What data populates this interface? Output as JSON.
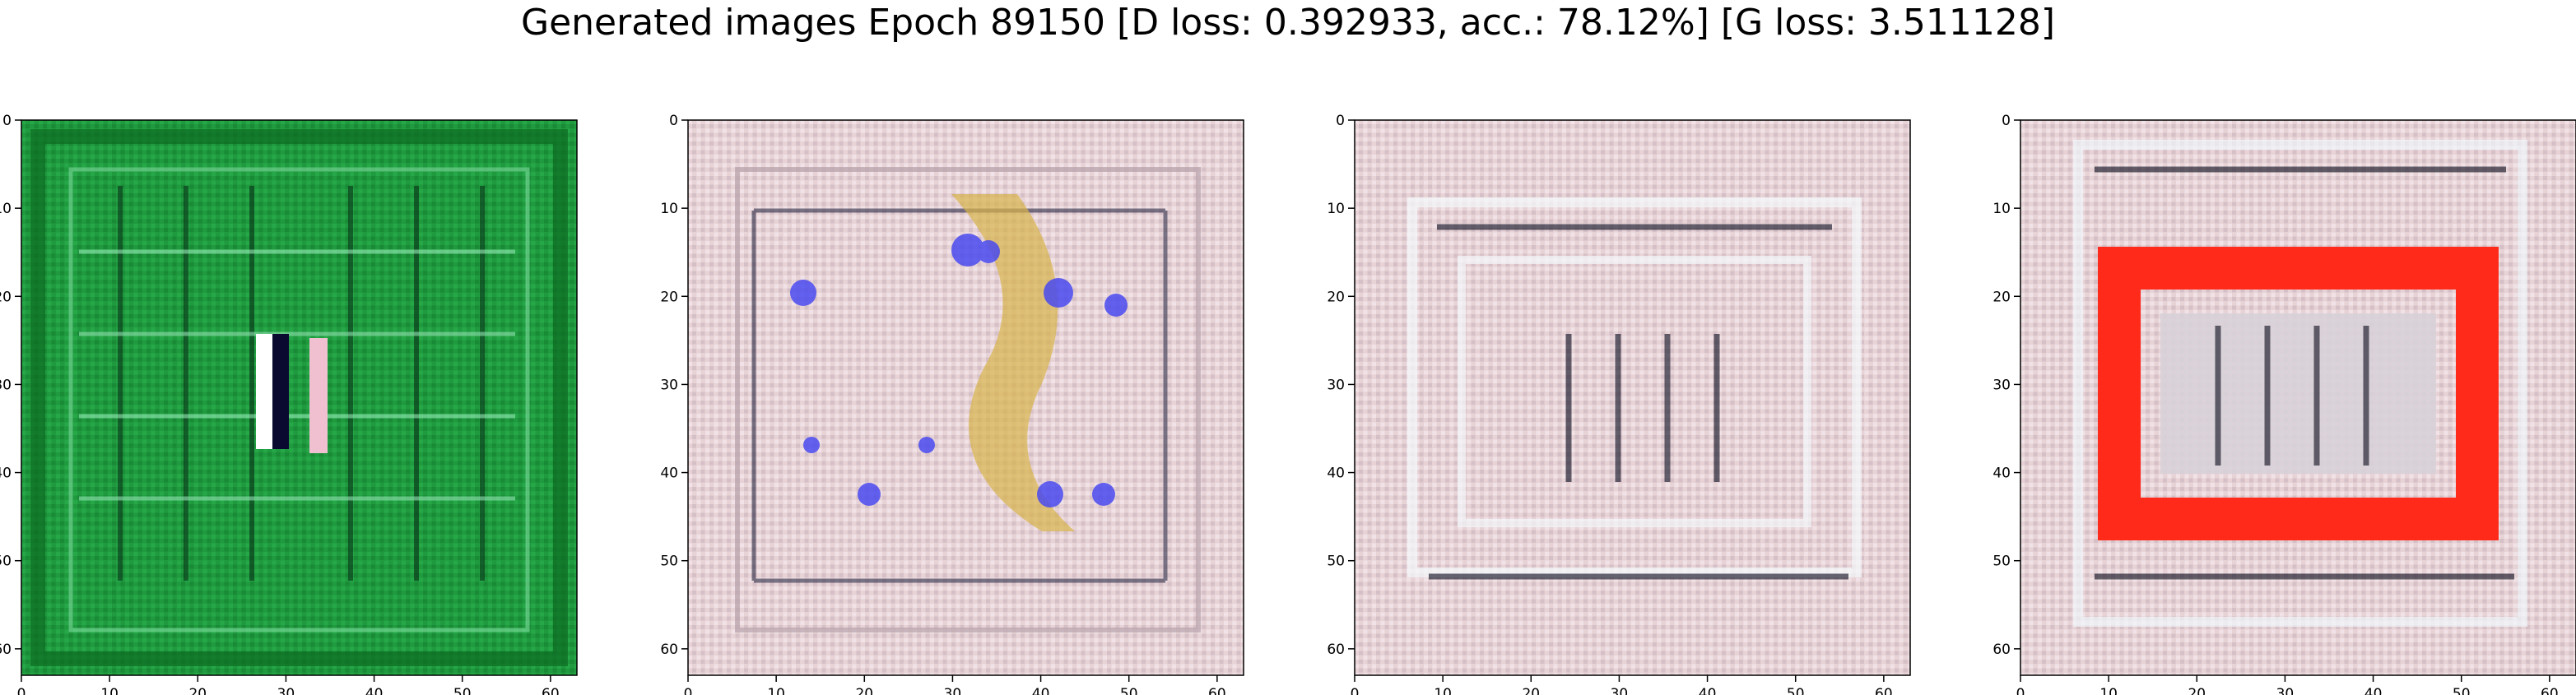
{
  "figure": {
    "title": "Generated images Epoch 89150 [D loss: 0.392933, acc.: 78.12%] [G loss: 3.511128]"
  },
  "axes_ticks": [
    "0",
    "10",
    "20",
    "30",
    "40",
    "50",
    "60"
  ],
  "panels": [
    {
      "name": "panel-1",
      "description_key": "green-sample"
    },
    {
      "name": "panel-2",
      "description_key": "pink-blue-yellow-sample"
    },
    {
      "name": "panel-3",
      "description_key": "grey-pink-sample"
    },
    {
      "name": "panel-4",
      "description_key": "red-frame-sample"
    }
  ],
  "colors": {
    "green_base": "#1f9a3e",
    "green_dark": "#0d6b22",
    "pink_base": "#e7d2d6",
    "blue_spot": "#4a4af0",
    "yellow_spot": "#d7b34a",
    "red_frame": "#ff2a1a",
    "dark_line": "#1b1b2a"
  }
}
